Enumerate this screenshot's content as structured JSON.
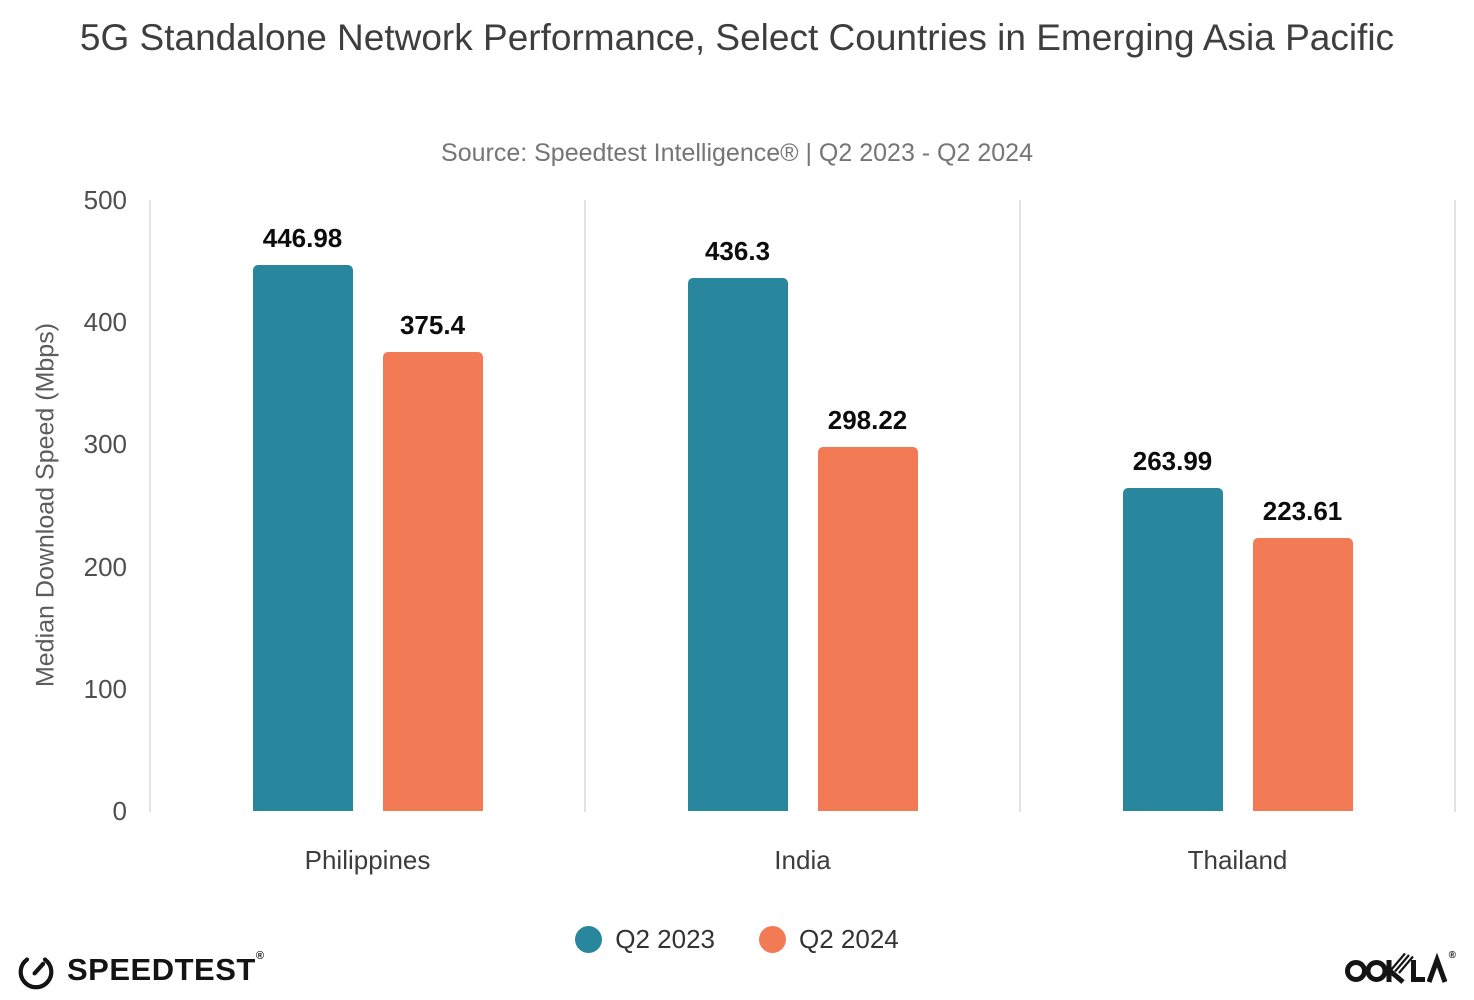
{
  "chart_data": {
    "type": "bar",
    "title": "5G Standalone Network Performance, Select Countries in Emerging Asia Pacific",
    "subtitle": "Source: Speedtest Intelligence® | Q2 2023 - Q2 2024",
    "xlabel": "",
    "ylabel": "Median Download Speed (Mbps)",
    "ylim": [
      0,
      500
    ],
    "yticks": [
      0,
      100,
      200,
      300,
      400,
      500
    ],
    "grid": "vertical-category-separators-only",
    "legend_position": "bottom-center",
    "value_labels_shown": true,
    "categories": [
      "Philippines",
      "India",
      "Thailand"
    ],
    "series": [
      {
        "name": "Q2 2023",
        "color": "#28879D",
        "values": [
          446.98,
          436.3,
          263.99
        ]
      },
      {
        "name": "Q2 2024",
        "color": "#F27A54",
        "values": [
          375.4,
          298.22,
          223.61
        ]
      }
    ]
  },
  "footer": {
    "speedtest_label": "SPEEDTEST",
    "speedtest_registered_mark": "®",
    "ookla_label": "OOKLA",
    "ookla_registered_mark": "®"
  },
  "icons": {
    "speedtest_gauge": "speedtest-gauge-icon",
    "legend_swatch": "circle-swatch"
  },
  "colors": {
    "series_q2_2023": "#28879D",
    "series_q2_2024": "#F27A54",
    "separator_line": "#E3E3E3",
    "logo_black": "#141414"
  }
}
